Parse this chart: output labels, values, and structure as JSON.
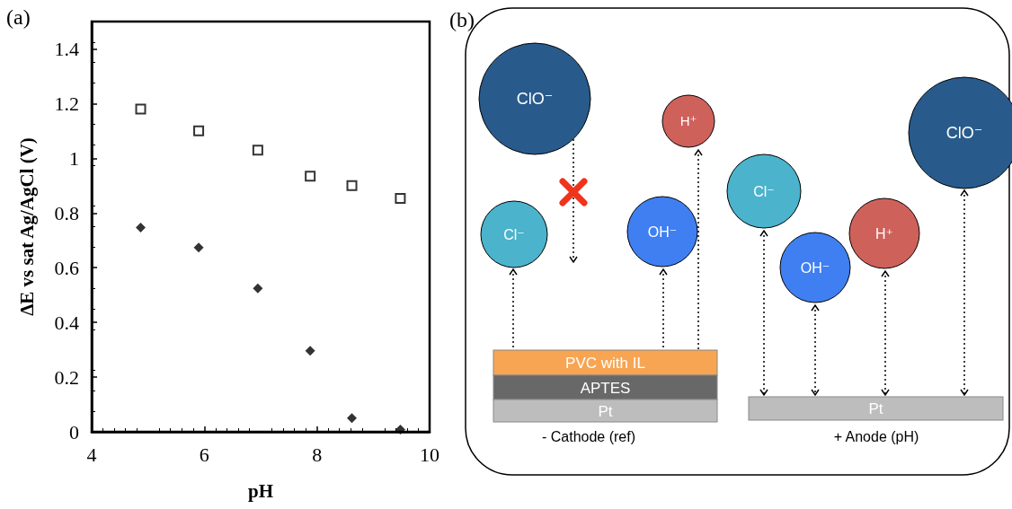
{
  "chart_data": [
    {
      "type": "scatter",
      "title": "(a)",
      "xlabel": "pH",
      "ylabel": "ΔE vs sat Ag/AgCl (V)",
      "x": [
        4.87,
        5.9,
        6.95,
        7.88,
        8.62,
        9.48
      ],
      "xlim": [
        4,
        10
      ],
      "xticks": [
        4,
        6,
        8,
        10
      ],
      "ylim": [
        0,
        1.5
      ],
      "yticks": [
        0,
        0.2,
        0.4,
        0.6,
        0.8,
        1,
        1.2,
        1.4
      ],
      "grid": false,
      "series": [
        {
          "color": "#000000",
          "marker": "square",
          "values": [
            1.18,
            1.1,
            1.03,
            0.935,
            0.9,
            0.853
          ]
        },
        {
          "color": "#000000",
          "marker": "diamond",
          "values": [
            0.747,
            0.674,
            0.524,
            0.296,
            0.05,
            0.008
          ]
        }
      ]
    },
    {
      "type": "other",
      "title": "(b)",
      "annotations": [
        "ClO⁻",
        "Cl⁻",
        "H⁺",
        "OH⁻",
        "PVC with IL",
        "APTES",
        "Pt",
        "- Cathode (ref)",
        "Cl⁻",
        "OH⁻",
        "H⁺",
        "ClO⁻",
        "Pt",
        "+ Anode (pH)"
      ]
    }
  ]
}
